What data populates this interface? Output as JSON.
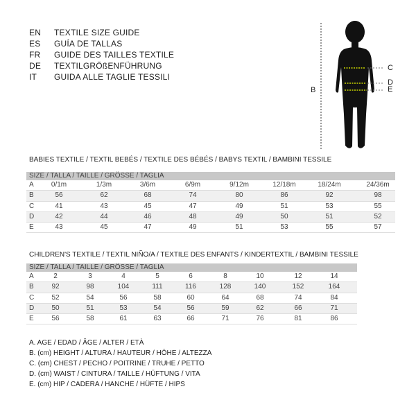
{
  "titles": [
    {
      "code": "EN",
      "text": "TEXTILE SIZE GUIDE"
    },
    {
      "code": "ES",
      "text": "GUÍA DE TALLAS"
    },
    {
      "code": "FR",
      "text": "GUIDE DES TAILLES TEXTILE"
    },
    {
      "code": "DE",
      "text": "TEXTILGRÖßENFÜHRUNG"
    },
    {
      "code": "IT",
      "text": "GUIDA ALLE TAGLIE TESSILI"
    }
  ],
  "figure": {
    "labels": {
      "B": "B",
      "C": "C",
      "D": "D",
      "E": "E"
    },
    "measure_line_color": "#c8d400"
  },
  "babies": {
    "title": "BABIES TEXTILE / TEXTIL BEBÉS / TEXTILE DES BÉBÉS / BABYS TEXTIL  / BAMBINI TESSILE",
    "header": "SIZE / TALLA / TAILLE / GRÖSSE / TAGLIA",
    "rows": [
      [
        "A",
        "0/1m",
        "1/3m",
        "3/6m",
        "6/9m",
        "9/12m",
        "12/18m",
        "18/24m",
        "24/36m"
      ],
      [
        "B",
        "56",
        "62",
        "68",
        "74",
        "80",
        "86",
        "92",
        "98"
      ],
      [
        "C",
        "41",
        "43",
        "45",
        "47",
        "49",
        "51",
        "53",
        "55"
      ],
      [
        "D",
        "42",
        "44",
        "46",
        "48",
        "49",
        "50",
        "51",
        "52"
      ],
      [
        "E",
        "43",
        "45",
        "47",
        "49",
        "51",
        "53",
        "55",
        "57"
      ]
    ]
  },
  "children": {
    "title": "CHILDREN'S TEXTILE / TEXTIL NIÑO/A / TEXTILE DES ENFANTS / KINDERTEXTIL / BAMBINI TESSILE",
    "header": "SIZE / TALLA / TAILLE / GRÖSSE / TAGLIA",
    "rows": [
      [
        "A",
        "2",
        "3",
        "4",
        "5",
        "6",
        "8",
        "10",
        "12",
        "14"
      ],
      [
        "B",
        "92",
        "98",
        "104",
        "111",
        "116",
        "128",
        "140",
        "152",
        "164"
      ],
      [
        "C",
        "52",
        "54",
        "56",
        "58",
        "60",
        "64",
        "68",
        "74",
        "84"
      ],
      [
        "D",
        "50",
        "51",
        "53",
        "54",
        "56",
        "59",
        "62",
        "66",
        "71"
      ],
      [
        "E",
        "56",
        "58",
        "61",
        "63",
        "66",
        "71",
        "76",
        "81",
        "86"
      ]
    ]
  },
  "legend": [
    "A. AGE / EDAD / ÂGE / ALTER / ETÀ",
    "B. (cm) HEIGHT / ALTURA / HAUTEUR / HÖHE / ALTEZZA",
    "C. (cm) CHEST / PECHO / POITRINE / TRUHE / PETTO",
    "D. (cm) WAIST / CINTURA / TAILLE / HÜFTUNG / VITA",
    "E. (cm) HIP / CADERA / HANCHE / HÜFTE / HIPS"
  ]
}
